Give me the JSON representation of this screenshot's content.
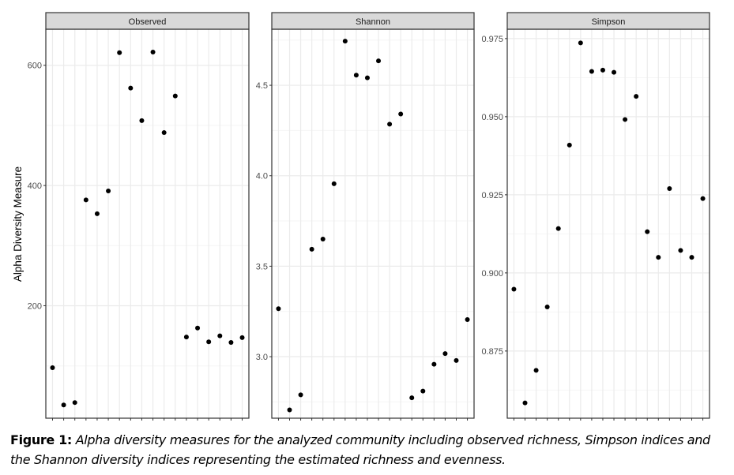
{
  "chart_data": {
    "type": "scatter",
    "ylabel": "Alpha Diversity Measure",
    "xlabel": "",
    "n_samples": 18,
    "grid": true,
    "panels": [
      {
        "title": "Observed",
        "ylim": [
          13,
          660
        ],
        "yticks": [
          200,
          400,
          600
        ],
        "ytick_labels": [
          "200",
          "400",
          "600"
        ],
        "values": [
          97,
          35,
          39,
          376,
          353,
          391,
          621,
          562,
          508,
          622,
          488,
          549,
          148,
          163,
          140,
          150,
          139,
          147
        ]
      },
      {
        "title": "Shannon",
        "ylim": [
          2.66,
          4.81
        ],
        "yticks": [
          3.0,
          3.5,
          4.0,
          4.5
        ],
        "ytick_labels": [
          "3.0",
          "3.5",
          "4.0",
          "4.5"
        ],
        "values": [
          3.265,
          2.706,
          2.789,
          3.594,
          3.65,
          3.956,
          4.744,
          4.556,
          4.541,
          4.635,
          4.285,
          4.341,
          2.773,
          2.81,
          2.958,
          3.017,
          2.979,
          3.205
        ]
      },
      {
        "title": "Simpson",
        "ylim": [
          0.8535,
          0.978
        ],
        "yticks": [
          0.875,
          0.9,
          0.925,
          0.95,
          0.975
        ],
        "ytick_labels": [
          "0.875",
          "0.900",
          "0.925",
          "0.950",
          "0.975"
        ],
        "values": [
          0.8948,
          0.8584,
          0.8688,
          0.8891,
          0.9142,
          0.9409,
          0.9736,
          0.9645,
          0.9649,
          0.9642,
          0.9491,
          0.9565,
          0.9132,
          0.905,
          0.927,
          0.9072,
          0.905,
          0.9238
        ]
      }
    ]
  },
  "caption": {
    "lead": "Figure 1:",
    "body": " Alpha diversity measures for the analyzed community including observed richness, Simpson indices and the Shannon diversity indices representing the estimated richness and evenness."
  },
  "colors": {
    "point": "#000000",
    "strip_fill": "#d9d9d9",
    "panel_border": "#333333",
    "grid_major": "#ebebeb",
    "grid_minor": "#f5f5f5"
  }
}
